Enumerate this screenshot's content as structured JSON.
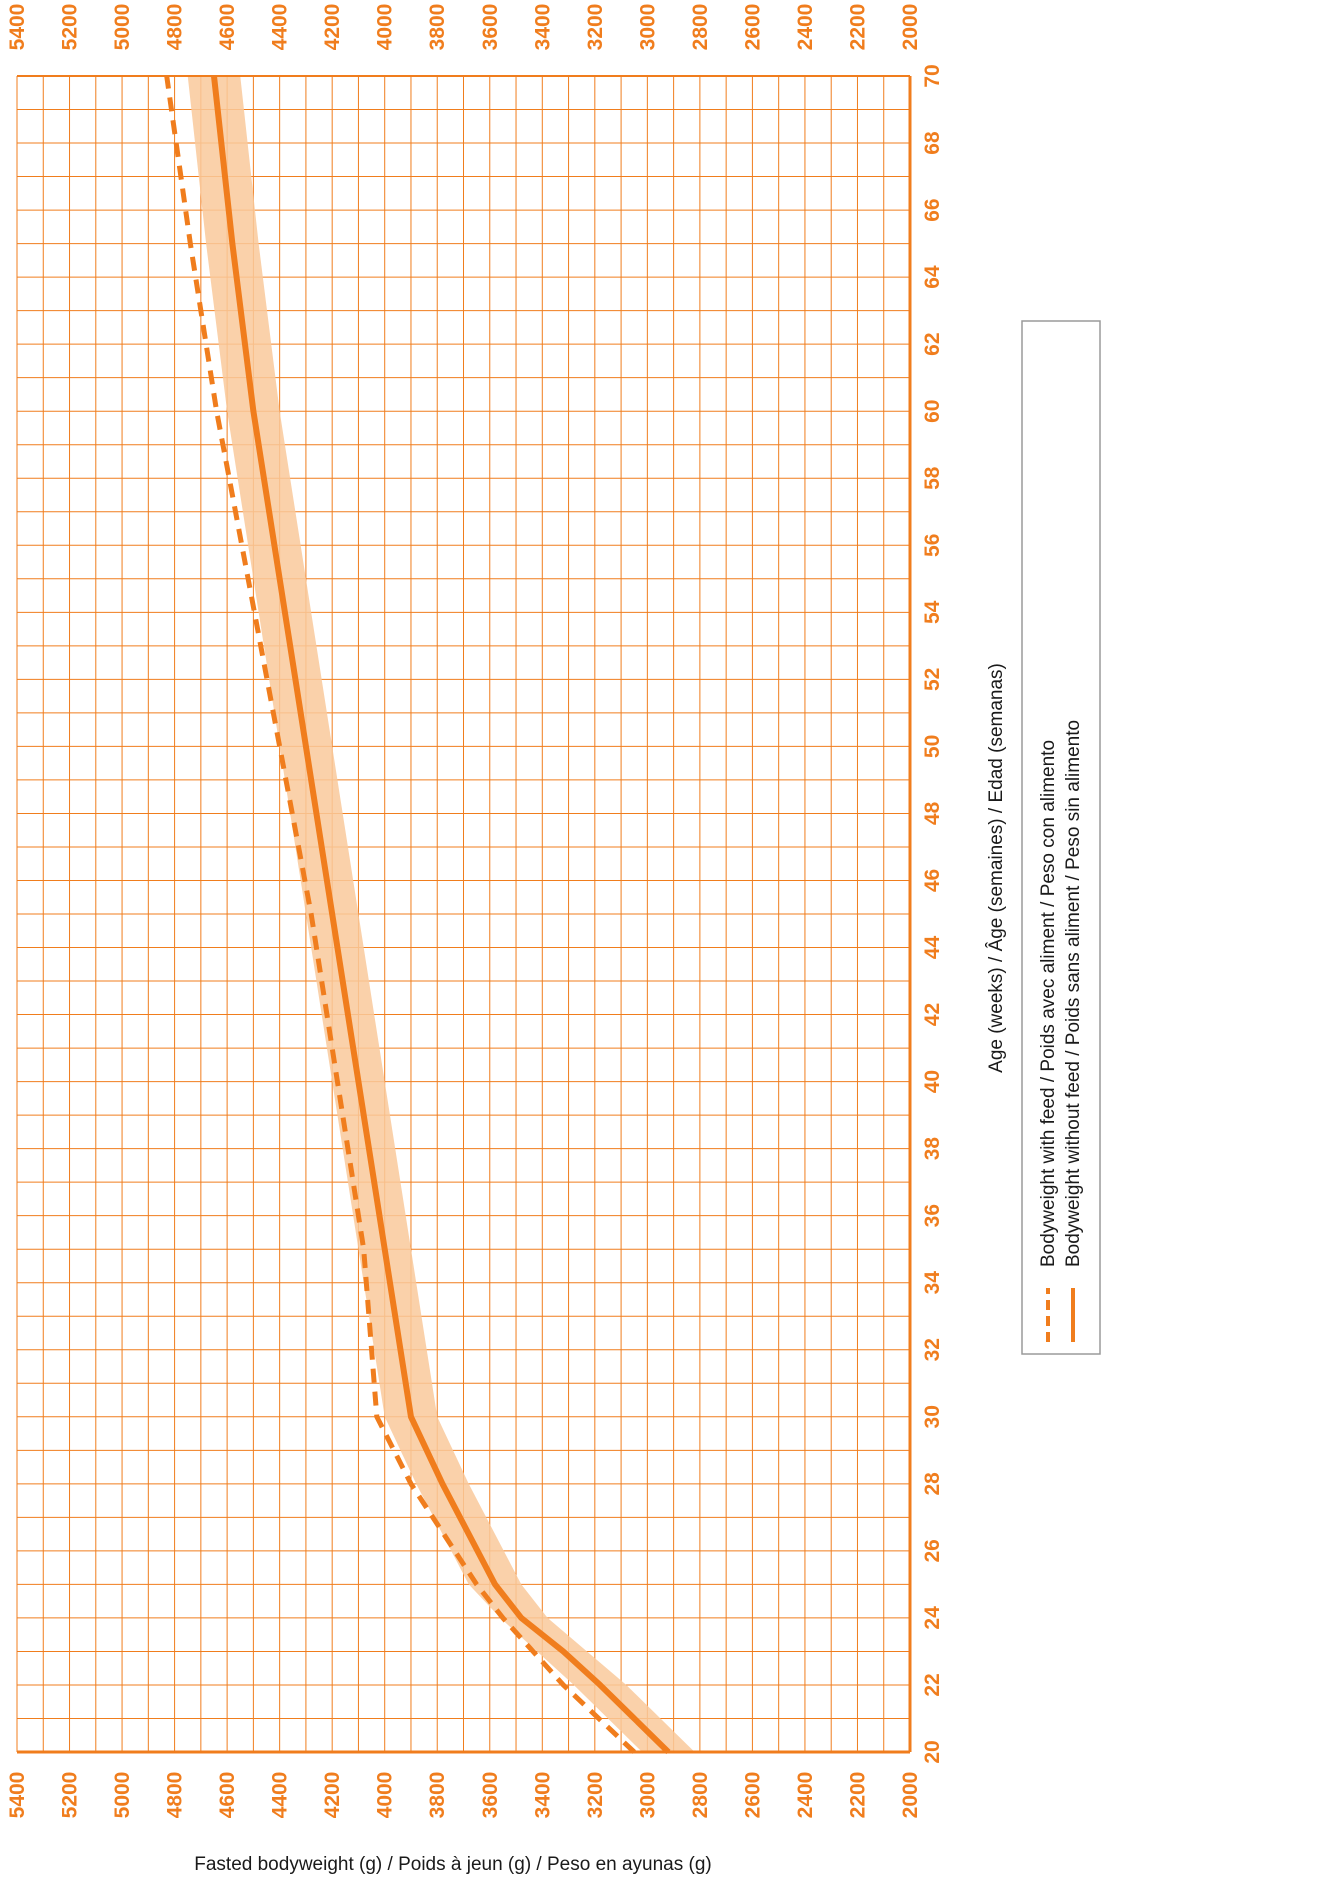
{
  "colors": {
    "accent": "#f07d1d",
    "band": "#f9c99b",
    "grid": "#f07d1d",
    "legend_border": "#9a9a9a",
    "text": "#1a1a1a"
  },
  "chart_data": {
    "type": "line",
    "orientation": "rotated-90-clockwise",
    "xlabel": "Age (weeks) / Âge (semaines) / Edad (semanas)",
    "ylabel": "Fasted bodyweight (g) / Poids à jeun (g) / Peso en ayunas (g)",
    "xlim": [
      20,
      70
    ],
    "ylim": [
      2000,
      5400
    ],
    "x_ticks": [
      "20",
      "22",
      "24",
      "26",
      "28",
      "30",
      "32",
      "34",
      "36",
      "38",
      "40",
      "42",
      "44",
      "46",
      "48",
      "50",
      "52",
      "54",
      "56",
      "58",
      "60",
      "62",
      "64",
      "66",
      "68",
      "70"
    ],
    "y_ticks": [
      "5400",
      "5200",
      "5000",
      "4800",
      "4600",
      "4400",
      "4200",
      "4000",
      "3800",
      "3600",
      "3400",
      "3200",
      "3000",
      "2800",
      "2600",
      "2400",
      "2200",
      "2000"
    ],
    "grid": true,
    "legend_position": "right",
    "series": [
      {
        "name": "Bodyweight with feed / Poids avec aliment / Peso con alimento",
        "style": "dashed",
        "x": [
          20,
          22,
          24,
          25,
          28,
          30,
          35,
          40,
          45,
          50,
          55,
          60,
          65,
          70
        ],
        "y": [
          3050,
          3320,
          3550,
          3650,
          3900,
          4030,
          4080,
          4180,
          4280,
          4400,
          4520,
          4640,
          4740,
          4830
        ]
      },
      {
        "name": "Bodyweight without feed / Poids sans aliment / Peso sin alimento",
        "style": "solid",
        "x": [
          20,
          21,
          22,
          23,
          24,
          25,
          28,
          30,
          35,
          40,
          45,
          50,
          55,
          60,
          65,
          70
        ],
        "y": [
          2920,
          3050,
          3180,
          3320,
          3480,
          3580,
          3780,
          3900,
          4000,
          4100,
          4200,
          4300,
          4400,
          4500,
          4580,
          4650
        ]
      }
    ],
    "band": {
      "x": [
        20,
        22,
        24,
        25,
        28,
        30,
        35,
        40,
        45,
        50,
        55,
        60,
        65,
        70
      ],
      "lower": [
        2820,
        3080,
        3380,
        3480,
        3680,
        3800,
        3900,
        4000,
        4100,
        4200,
        4300,
        4400,
        4480,
        4550
      ],
      "upper": [
        3020,
        3280,
        3560,
        3680,
        3880,
        4000,
        4100,
        4200,
        4300,
        4400,
        4500,
        4600,
        4680,
        4750
      ]
    }
  }
}
